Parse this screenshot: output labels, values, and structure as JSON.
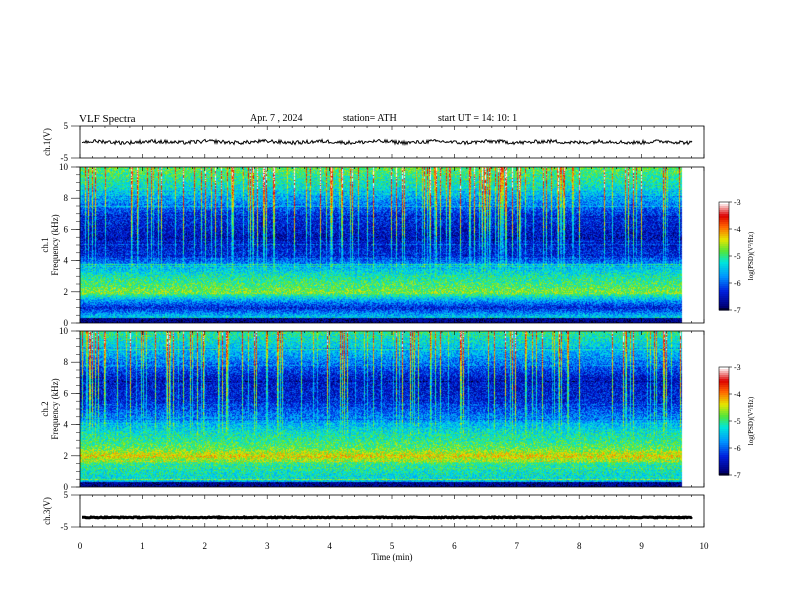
{
  "header": {
    "title": "VLF  Spectra",
    "date": "Apr. 7  ,  2024",
    "station": "station= ATH",
    "start": "start  UT  =    14: 10: 1"
  },
  "chart_data": [
    {
      "type": "line",
      "panel": "ch1-waveform",
      "ylabel": "ch.1(V)",
      "ylim": [
        -5,
        5
      ],
      "yticks": [
        "5",
        "-5"
      ],
      "xlim": [
        0,
        10
      ],
      "series": [
        {
          "baseline": 0,
          "noise_amplitude": 0.6
        }
      ]
    },
    {
      "type": "heatmap",
      "panel": "ch1-spectrogram",
      "ylabel": "Frequency  (kHz)",
      "channel_label": "ch.1",
      "ylim": [
        0,
        10
      ],
      "yticks": [
        "0",
        "2",
        "4",
        "6",
        "8",
        "10"
      ],
      "xlim": [
        0,
        10
      ],
      "data_xmax": 9.83,
      "colorbar": {
        "label": "log(PSD)(V²/Hz)",
        "range": [
          -7,
          -3
        ],
        "ticks": [
          "-3",
          "-4",
          "-5",
          "-6",
          "-7"
        ]
      },
      "level_by_frequency_khz": [
        [
          0,
          -6.5
        ],
        [
          0.3,
          -5.2
        ],
        [
          1.0,
          -6.3
        ],
        [
          1.5,
          -5.6
        ],
        [
          2.0,
          -4.7
        ],
        [
          3.0,
          -5.1
        ],
        [
          3.7,
          -5.6
        ],
        [
          4.2,
          -6.2
        ],
        [
          5.5,
          -6.5
        ],
        [
          7.0,
          -6.2
        ],
        [
          8.5,
          -5.3
        ],
        [
          10,
          -4.8
        ]
      ]
    },
    {
      "type": "heatmap",
      "panel": "ch2-spectrogram",
      "ylabel": "Frequency  (kHz)",
      "channel_label": "ch.2",
      "ylim": [
        0,
        10
      ],
      "yticks": [
        "0",
        "2",
        "4",
        "6",
        "8",
        "10"
      ],
      "xlim": [
        0,
        10
      ],
      "data_xmax": 9.83,
      "colorbar": {
        "label": "log(PSD)(V²/Hz)",
        "range": [
          -7,
          -3
        ],
        "ticks": [
          "-3",
          "-4",
          "-5",
          "-6",
          "-7"
        ]
      },
      "level_by_frequency_khz": [
        [
          0,
          -6.3
        ],
        [
          0.5,
          -5.3
        ],
        [
          1.5,
          -5.0
        ],
        [
          2.0,
          -4.3
        ],
        [
          2.5,
          -4.8
        ],
        [
          3.5,
          -5.2
        ],
        [
          4.5,
          -5.8
        ],
        [
          5.5,
          -6.3
        ],
        [
          7.0,
          -6.4
        ],
        [
          8.5,
          -5.6
        ],
        [
          10,
          -5.0
        ]
      ]
    },
    {
      "type": "line",
      "panel": "ch3-waveform",
      "ylabel": "ch.3(V)",
      "ylim": [
        -5,
        5
      ],
      "yticks": [
        "5",
        "-5"
      ],
      "xlim": [
        0,
        10
      ],
      "xlabel": "Time  (min)",
      "xticks": [
        "0",
        "1",
        "2",
        "3",
        "4",
        "5",
        "6",
        "7",
        "8",
        "9",
        "10"
      ],
      "series": [
        {
          "baseline": -2,
          "noise_amplitude": 0.15
        }
      ]
    }
  ]
}
